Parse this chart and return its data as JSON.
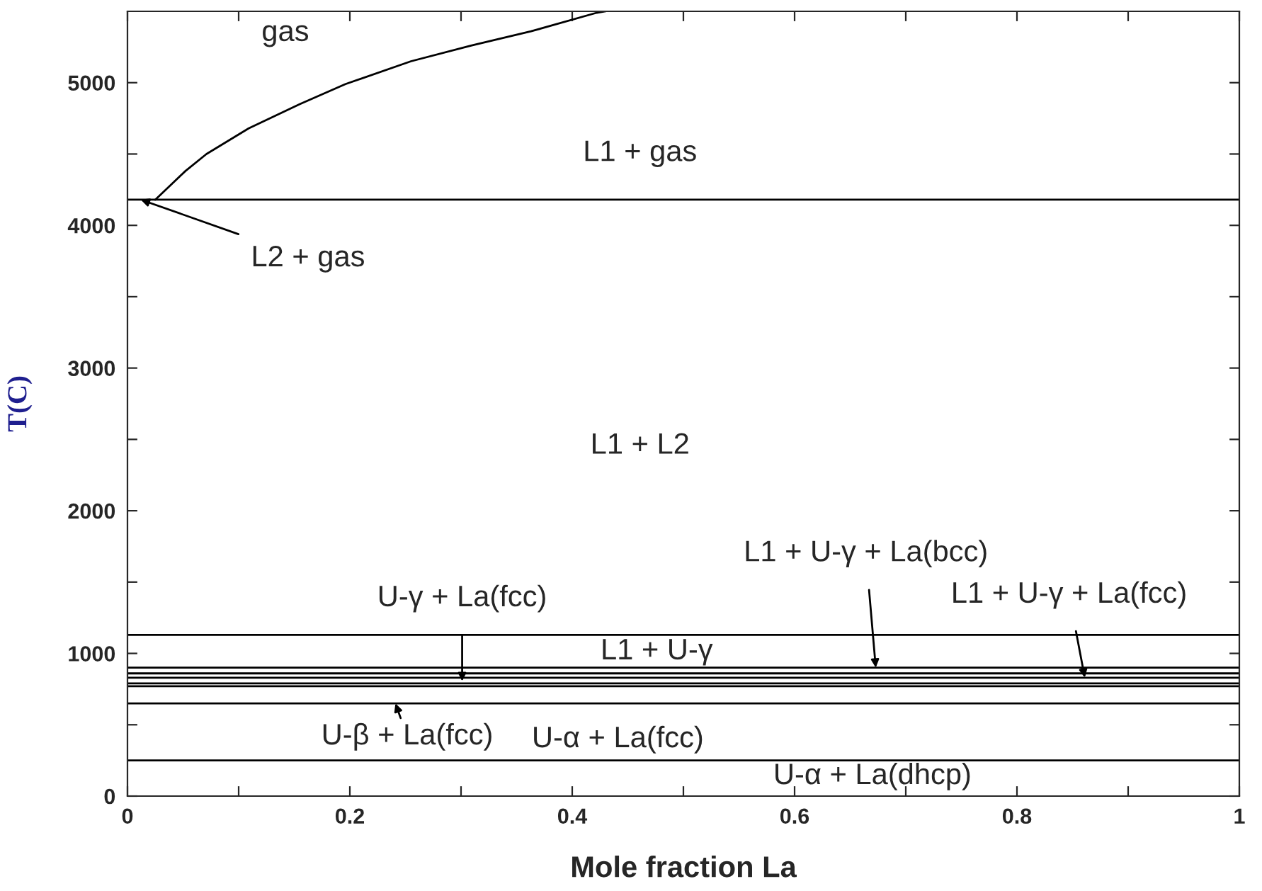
{
  "chart_data": {
    "type": "line",
    "xlabel": "Mole fraction La",
    "ylabel": "T(C)",
    "xlim": [
      0,
      1
    ],
    "ylim": [
      0,
      5500
    ],
    "xticks": [
      0,
      {
        "value": 0.1,
        "label": null
      },
      0.2,
      {
        "value": 0.3,
        "label": null
      },
      0.4,
      {
        "value": 0.5,
        "label": null
      },
      0.6,
      {
        "value": 0.7,
        "label": null
      },
      0.8,
      {
        "value": 0.9,
        "label": null
      },
      1
    ],
    "yticks": [
      0,
      {
        "value": 500,
        "label": null
      },
      1000,
      {
        "value": 1500,
        "label": null
      },
      2000,
      {
        "value": 2500,
        "label": null
      },
      3000,
      {
        "value": 3500,
        "label": null
      },
      4000,
      {
        "value": 4500,
        "label": null
      },
      5000
    ],
    "grid": false,
    "legend": false,
    "marker": "none",
    "line_style": "solid",
    "series": [
      {
        "color": "#000000",
        "x": [
          0.025,
          0.052,
          0.071,
          0.109,
          0.155,
          0.196,
          0.255,
          0.309,
          0.363,
          0.422,
          0.43
        ],
        "values": [
          4180,
          4380,
          4500,
          4680,
          4850,
          4990,
          5150,
          5260,
          5360,
          5490,
          5500
        ]
      },
      {
        "color": "#000000",
        "x": [
          0,
          1
        ],
        "values": [
          4180,
          4180
        ]
      },
      {
        "color": "#000000",
        "x": [
          0,
          1
        ],
        "values": [
          1130,
          1130
        ]
      },
      {
        "color": "#000000",
        "x": [
          0,
          1
        ],
        "values": [
          900,
          900
        ]
      },
      {
        "color": "#000000",
        "x": [
          0,
          1
        ],
        "values": [
          860,
          860
        ]
      },
      {
        "color": "#000000",
        "x": [
          0,
          1
        ],
        "values": [
          830,
          830
        ]
      },
      {
        "color": "#000000",
        "x": [
          0,
          1
        ],
        "values": [
          790,
          790
        ]
      },
      {
        "color": "#000000",
        "x": [
          0,
          1
        ],
        "values": [
          770,
          770
        ]
      },
      {
        "color": "#000000",
        "x": [
          0,
          1
        ],
        "values": [
          650,
          650
        ]
      },
      {
        "color": "#000000",
        "x": [
          0,
          1
        ],
        "values": [
          250,
          250
        ]
      }
    ],
    "annotations": [
      "gas",
      "L1 + gas",
      {
        "text": "L2 + gas",
        "x": 0.012,
        "y": 4180
      },
      "L1 + L2",
      {
        "text": "U-γ + La(fcc)",
        "x": 0.301,
        "y": 805
      },
      "L1 + U-γ",
      {
        "text": "L1 + U-γ + La(bcc)",
        "x": 0.673,
        "y": 900
      },
      {
        "text": "L1 + U-γ + La(fcc)",
        "x": 0.861,
        "y": 830
      },
      {
        "text": "U-β + La(fcc)",
        "x": 0.241,
        "y": 650
      },
      "U-α + La(fcc)",
      "U-α + La(dhcp)"
    ]
  }
}
